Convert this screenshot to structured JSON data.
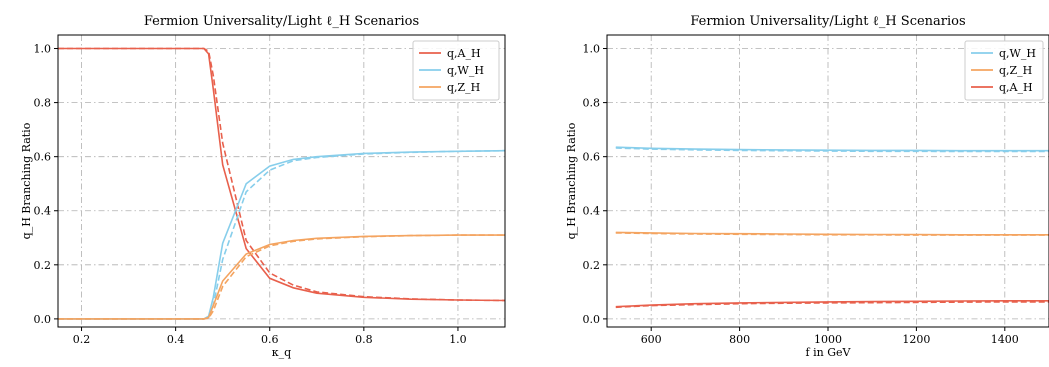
{
  "chart_data": [
    {
      "type": "line",
      "title": "Fermion Universality/Light ℓ_H Scenarios",
      "xlabel": "κ_q",
      "ylabel": "q_H Branching Ratio",
      "xlim": [
        0.15,
        1.1
      ],
      "ylim": [
        -0.03,
        1.05
      ],
      "xticks": [
        0.2,
        0.4,
        0.6,
        0.8,
        1.0
      ],
      "xtick_labels": [
        "0.2",
        "0.4",
        "0.6",
        "0.8",
        "1.0"
      ],
      "yticks": [
        0.0,
        0.2,
        0.4,
        0.6,
        0.8,
        1.0
      ],
      "ytick_labels": [
        "0.0",
        "0.2",
        "0.4",
        "0.6",
        "0.8",
        "1.0"
      ],
      "grid": true,
      "legend_position": "top-right",
      "series": [
        {
          "name": "q,A_H",
          "color": "#e8604c",
          "x": [
            0.15,
            0.4,
            0.46,
            0.47,
            0.48,
            0.5,
            0.55,
            0.6,
            0.65,
            0.7,
            0.8,
            0.9,
            1.0,
            1.1
          ],
          "y": [
            1.0,
            1.0,
            1.0,
            0.98,
            0.85,
            0.57,
            0.26,
            0.15,
            0.115,
            0.095,
            0.08,
            0.073,
            0.07,
            0.068
          ],
          "y_dashed": [
            1.0,
            1.0,
            1.0,
            0.99,
            0.9,
            0.65,
            0.29,
            0.17,
            0.125,
            0.1,
            0.082,
            0.074,
            0.07,
            0.068
          ]
        },
        {
          "name": "q,W_H",
          "color": "#87ceeb",
          "x": [
            0.15,
            0.4,
            0.46,
            0.47,
            0.48,
            0.5,
            0.55,
            0.6,
            0.65,
            0.7,
            0.8,
            0.9,
            1.0,
            1.1
          ],
          "y": [
            0.0,
            0.0,
            0.0,
            0.01,
            0.08,
            0.28,
            0.5,
            0.565,
            0.59,
            0.6,
            0.612,
            0.617,
            0.62,
            0.622
          ],
          "y_dashed": [
            0.0,
            0.0,
            0.0,
            0.005,
            0.05,
            0.22,
            0.47,
            0.55,
            0.585,
            0.597,
            0.61,
            0.616,
            0.62,
            0.622
          ]
        },
        {
          "name": "q,Z_H",
          "color": "#f4a460",
          "x": [
            0.15,
            0.4,
            0.46,
            0.47,
            0.48,
            0.5,
            0.55,
            0.6,
            0.65,
            0.7,
            0.8,
            0.9,
            1.0,
            1.1
          ],
          "y": [
            0.0,
            0.0,
            0.0,
            0.005,
            0.05,
            0.14,
            0.24,
            0.275,
            0.29,
            0.298,
            0.305,
            0.308,
            0.31,
            0.31
          ],
          "y_dashed": [
            0.0,
            0.0,
            0.0,
            0.003,
            0.03,
            0.12,
            0.23,
            0.27,
            0.287,
            0.296,
            0.304,
            0.308,
            0.31,
            0.31
          ]
        }
      ]
    },
    {
      "type": "line",
      "title": "Fermion Universality/Light ℓ_H Scenarios",
      "xlabel": "f in GeV",
      "ylabel": "q_H Branching Ratio",
      "xlim": [
        500,
        1500
      ],
      "ylim": [
        -0.03,
        1.05
      ],
      "xticks": [
        600,
        800,
        1000,
        1200,
        1400
      ],
      "xtick_labels": [
        "600",
        "800",
        "1000",
        "1200",
        "1400"
      ],
      "yticks": [
        0.0,
        0.2,
        0.4,
        0.6,
        0.8,
        1.0
      ],
      "ytick_labels": [
        "0.0",
        "0.2",
        "0.4",
        "0.6",
        "0.8",
        "1.0"
      ],
      "grid": true,
      "legend_position": "top-right",
      "series": [
        {
          "name": "q,W_H",
          "color": "#87ceeb",
          "x": [
            520,
            600,
            700,
            800,
            900,
            1000,
            1100,
            1200,
            1300,
            1400,
            1500
          ],
          "y": [
            0.635,
            0.631,
            0.628,
            0.626,
            0.625,
            0.624,
            0.623,
            0.623,
            0.622,
            0.622,
            0.622
          ],
          "y_dashed": [
            0.632,
            0.628,
            0.625,
            0.623,
            0.622,
            0.621,
            0.62,
            0.62,
            0.619,
            0.619,
            0.619
          ]
        },
        {
          "name": "q,Z_H",
          "color": "#f4a460",
          "x": [
            520,
            600,
            700,
            800,
            900,
            1000,
            1100,
            1200,
            1300,
            1400,
            1500
          ],
          "y": [
            0.32,
            0.318,
            0.316,
            0.315,
            0.314,
            0.313,
            0.312,
            0.312,
            0.311,
            0.311,
            0.311
          ],
          "y_dashed": [
            0.318,
            0.316,
            0.314,
            0.313,
            0.312,
            0.311,
            0.311,
            0.31,
            0.31,
            0.31,
            0.31
          ]
        },
        {
          "name": "q,A_H",
          "color": "#e8604c",
          "x": [
            520,
            600,
            700,
            800,
            900,
            1000,
            1100,
            1200,
            1300,
            1400,
            1500
          ],
          "y": [
            0.045,
            0.051,
            0.056,
            0.059,
            0.061,
            0.063,
            0.064,
            0.065,
            0.066,
            0.067,
            0.067
          ],
          "y_dashed": [
            0.043,
            0.049,
            0.053,
            0.056,
            0.058,
            0.059,
            0.06,
            0.061,
            0.062,
            0.063,
            0.063
          ]
        }
      ]
    }
  ]
}
